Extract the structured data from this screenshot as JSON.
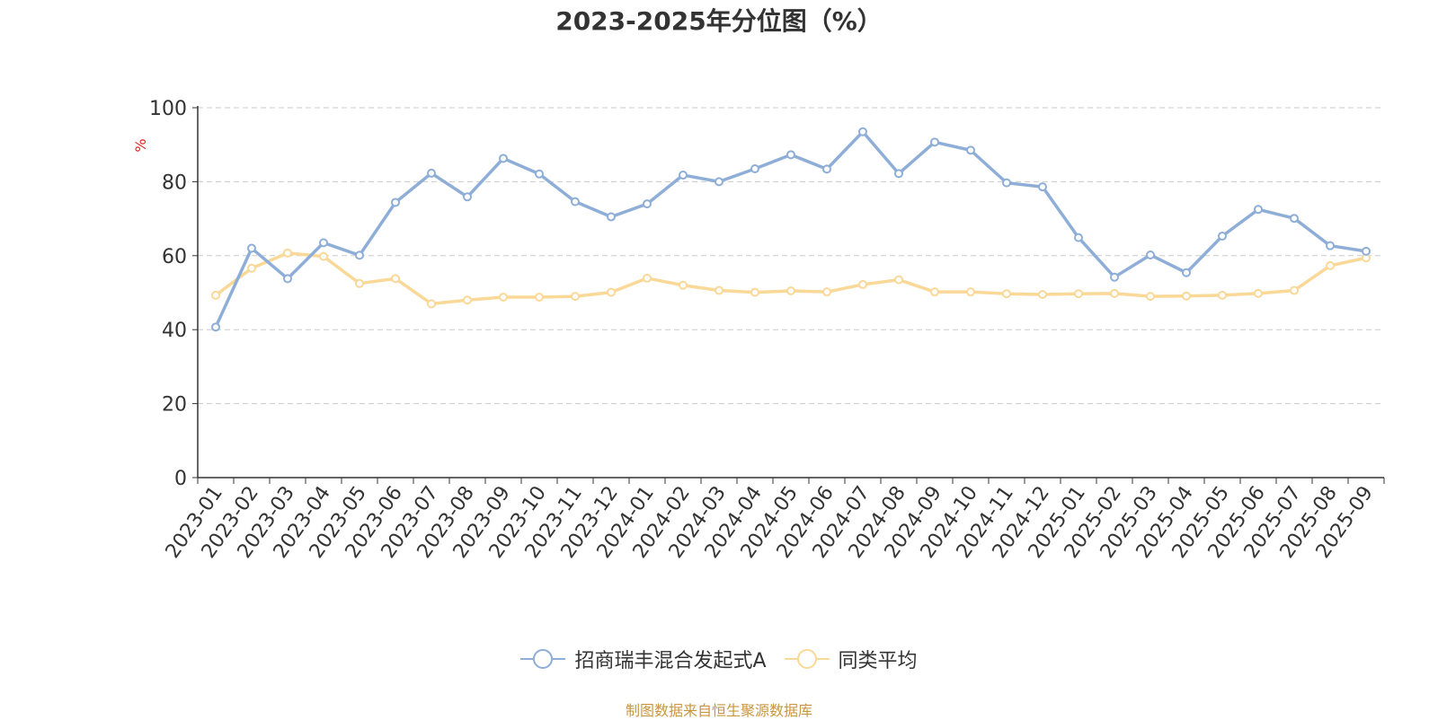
{
  "chart_data": {
    "type": "line",
    "title": "2023-2025年分位图（%）",
    "ylabel": "%",
    "ylim": [
      0,
      100
    ],
    "yticks": [
      0,
      20,
      40,
      60,
      80,
      100
    ],
    "grid": true,
    "legend_position": "bottom",
    "categories": [
      "2023-01",
      "2023-02",
      "2023-03",
      "2023-04",
      "2023-05",
      "2023-06",
      "2023-07",
      "2023-08",
      "2023-09",
      "2023-10",
      "2023-11",
      "2023-12",
      "2024-01",
      "2024-02",
      "2024-03",
      "2024-04",
      "2024-05",
      "2024-06",
      "2024-07",
      "2024-08",
      "2024-09",
      "2024-10",
      "2024-11",
      "2024-12",
      "2025-01",
      "2025-02",
      "2025-03",
      "2025-04",
      "2025-05",
      "2025-06",
      "2025-07",
      "2025-08",
      "2025-09"
    ],
    "series": [
      {
        "name": "招商瑞丰混合发起式A",
        "color": "#8eaed8",
        "values": [
          40.7,
          62.0,
          53.8,
          63.5,
          60.1,
          74.4,
          82.3,
          75.9,
          86.3,
          82.1,
          74.6,
          70.5,
          74.0,
          81.8,
          80.0,
          83.5,
          87.3,
          83.4,
          93.5,
          82.2,
          90.7,
          88.5,
          79.7,
          78.6,
          64.9,
          54.2,
          60.2,
          55.4,
          65.3,
          72.5,
          70.1,
          62.7,
          61.2
        ]
      },
      {
        "name": "同类平均",
        "color": "#f9d898",
        "values": [
          49.3,
          56.6,
          60.7,
          59.8,
          52.5,
          53.8,
          47.0,
          48.0,
          48.8,
          48.8,
          49.0,
          50.1,
          53.9,
          52.0,
          50.6,
          50.1,
          50.5,
          50.2,
          52.2,
          53.5,
          50.2,
          50.2,
          49.7,
          49.5,
          49.7,
          49.8,
          49.0,
          49.1,
          49.3,
          49.8,
          50.6,
          57.3,
          59.4
        ]
      }
    ]
  },
  "source_text": "制图数据来自恒生聚源数据库",
  "source_color": "#c8963e",
  "axis_color": "#333333",
  "grid_color": "#cccccc",
  "ylabel_color": "#e02020"
}
